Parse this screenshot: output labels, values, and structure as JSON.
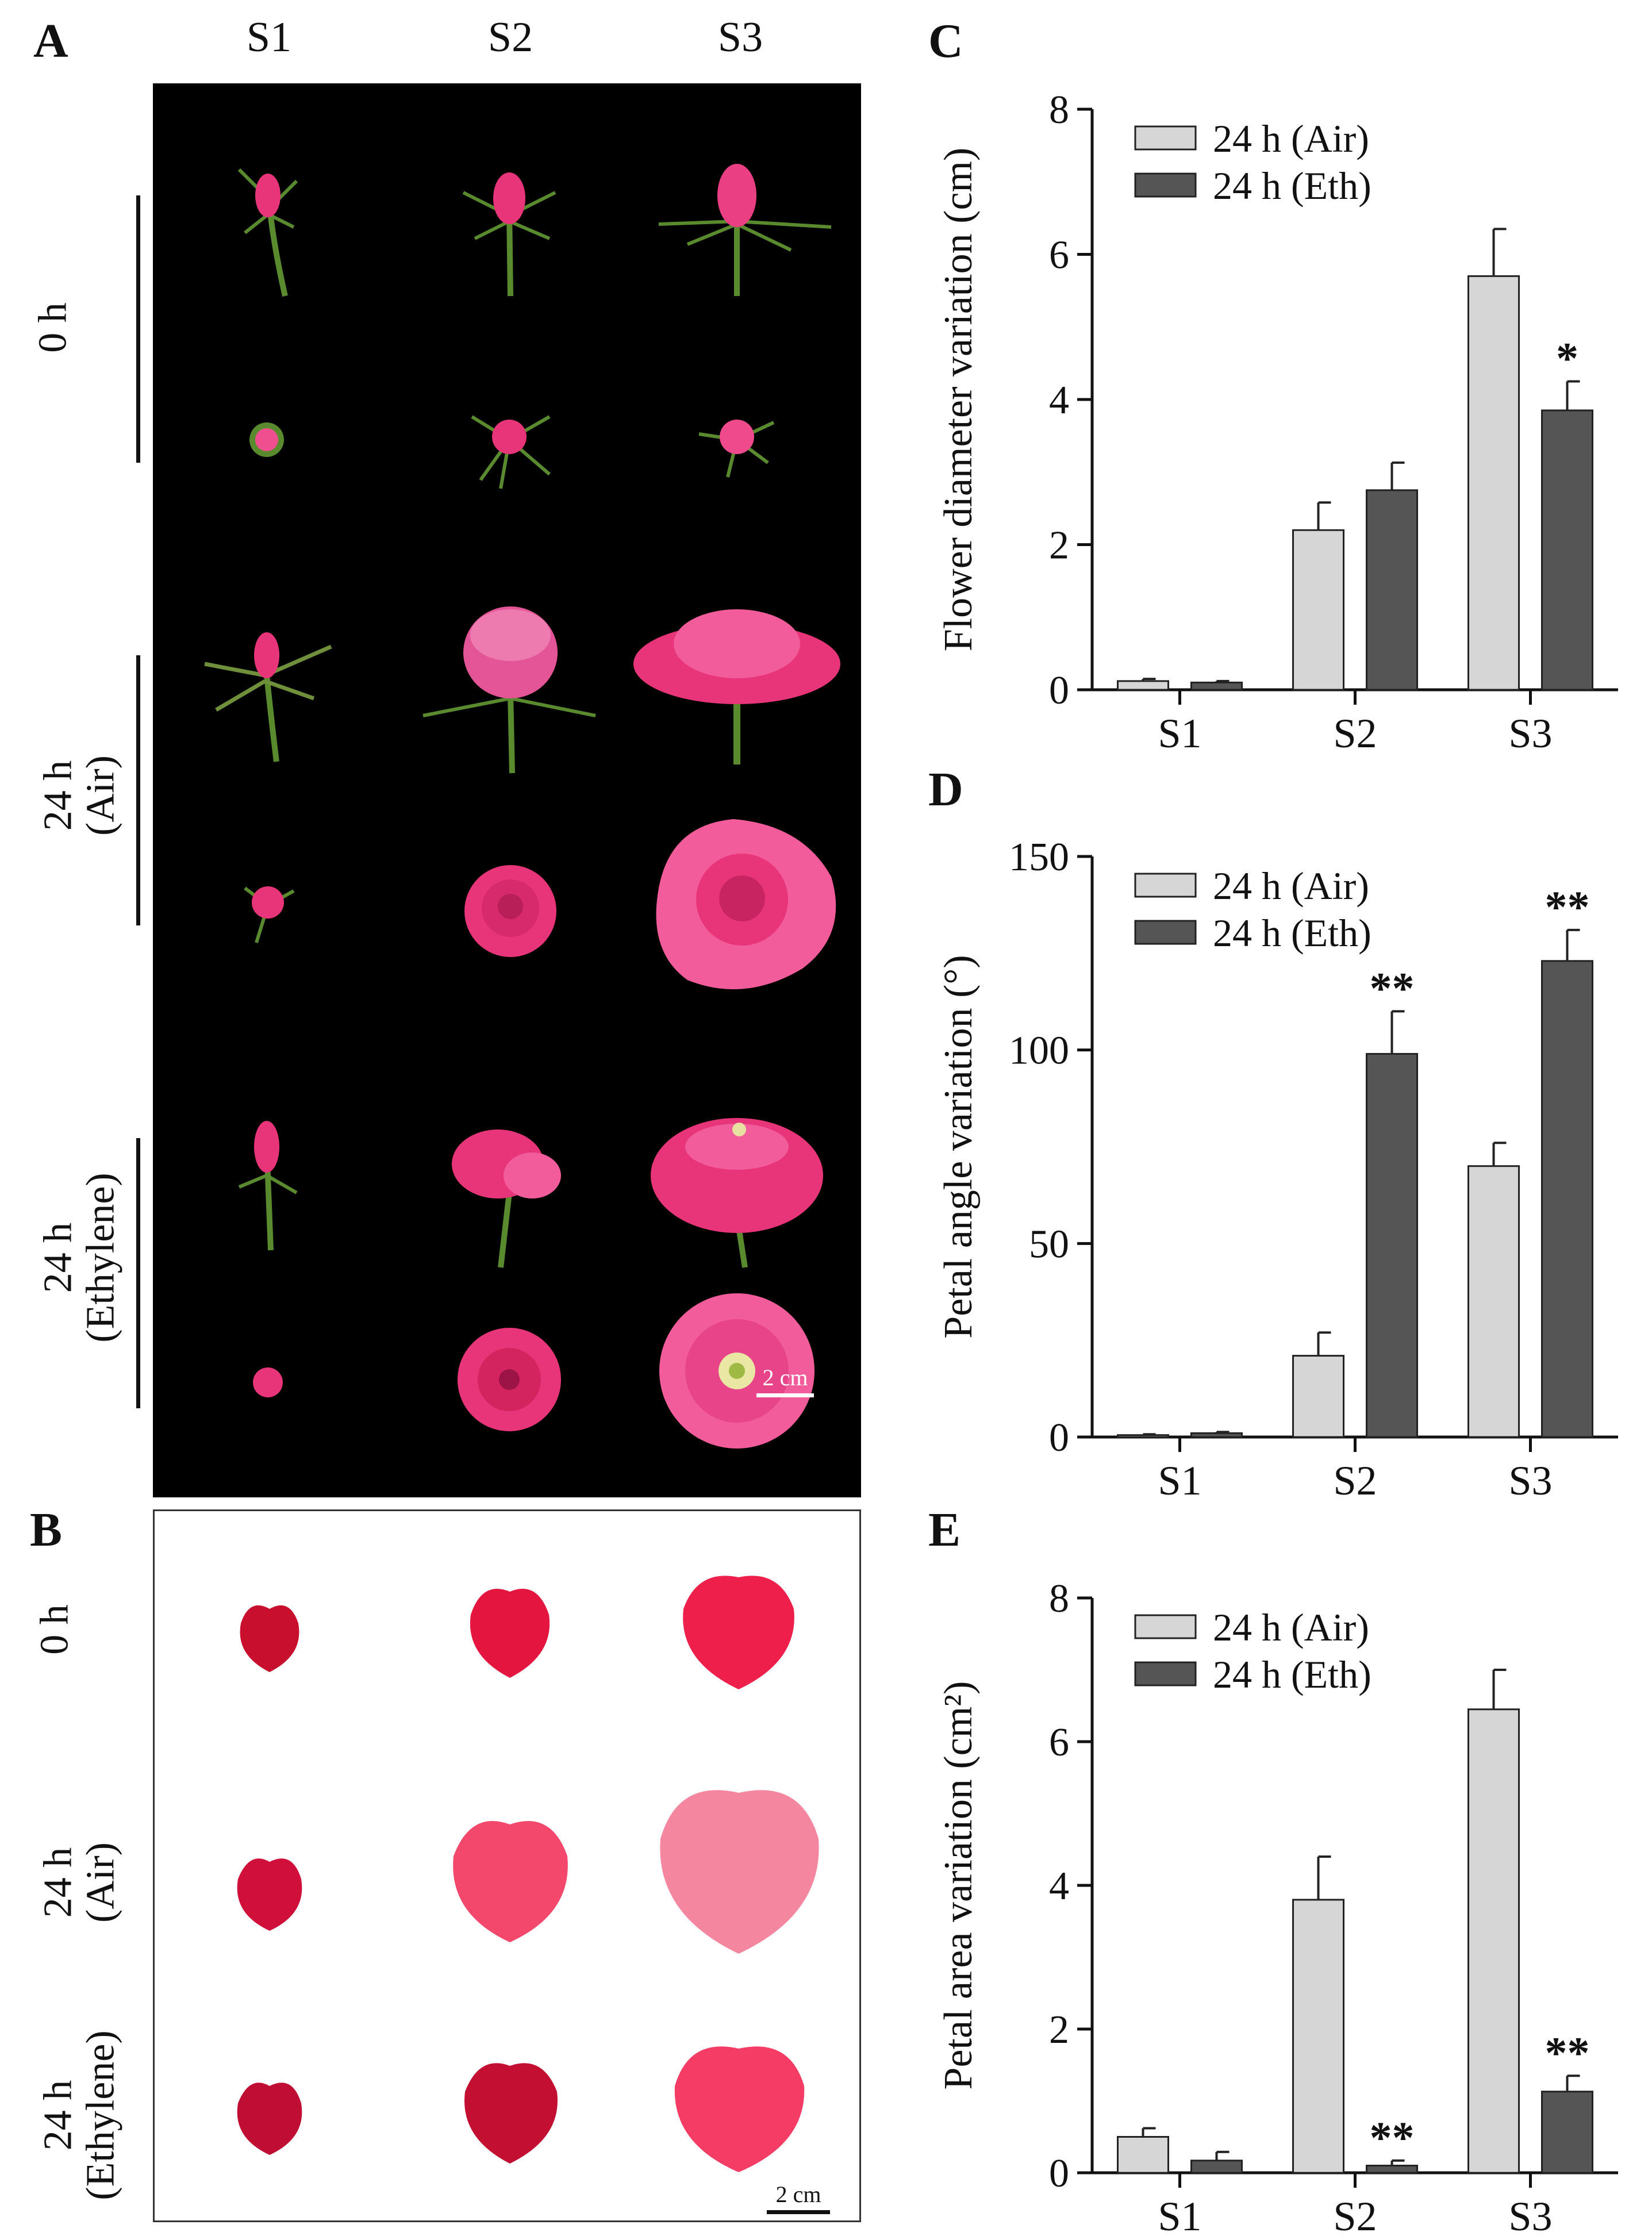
{
  "panels": {
    "a": "A",
    "b": "B",
    "c": "C",
    "d": "D",
    "e": "E"
  },
  "columns": [
    "S1",
    "S2",
    "S3"
  ],
  "panel_a_rows": [
    {
      "line1": "0 h",
      "line2": ""
    },
    {
      "line1": "24 h",
      "line2": "(Air)"
    },
    {
      "line1": "24 h",
      "line2": "(Ethylene)"
    }
  ],
  "panel_b_rows": [
    {
      "line1": "0 h",
      "line2": ""
    },
    {
      "line1": "24 h",
      "line2": "(Air)"
    },
    {
      "line1": "24 h",
      "line2": "(Ethylene)"
    }
  ],
  "scale_bar_a": "2 cm",
  "scale_bar_b": "2 cm",
  "colors": {
    "photo_bg": "#000000",
    "rose_pink": "#e8357a",
    "rose_light": "#f25c9a",
    "petal_red": "#c8102e",
    "petal_pink": "#f5869f",
    "stem_green": "#5a8a2e",
    "air_bar": "#d6d6d6",
    "eth_bar": "#555555"
  },
  "chart_data": [
    {
      "type": "bar",
      "panel": "C",
      "title": "",
      "xlabel": "",
      "ylabel": "Flower diameter variation (cm)",
      "categories": [
        "S1",
        "S2",
        "S3"
      ],
      "ylim": [
        0,
        8
      ],
      "yticks": [
        0,
        2,
        4,
        6,
        8
      ],
      "legend_position": "top-left",
      "series": [
        {
          "name": "24 h (Air)",
          "values": [
            0.12,
            2.2,
            5.7
          ],
          "errors": [
            0.03,
            0.38,
            0.65
          ],
          "color": "#d6d6d6"
        },
        {
          "name": "24 h (Eth)",
          "values": [
            0.1,
            2.75,
            3.85
          ],
          "errors": [
            0.02,
            0.38,
            0.4
          ],
          "color": "#555555"
        }
      ],
      "annotations": [
        {
          "category": "S3",
          "series": "24 h (Eth)",
          "text": "*"
        }
      ]
    },
    {
      "type": "bar",
      "panel": "D",
      "title": "",
      "xlabel": "",
      "ylabel": "Petal angle variation (°)",
      "categories": [
        "S1",
        "S2",
        "S3"
      ],
      "ylim": [
        0,
        150
      ],
      "yticks": [
        0,
        50,
        100,
        150
      ],
      "legend_position": "top-left",
      "series": [
        {
          "name": "24 h (Air)",
          "values": [
            0.5,
            21,
            70
          ],
          "errors": [
            0.2,
            6,
            6
          ],
          "color": "#d6d6d6"
        },
        {
          "name": "24 h (Eth)",
          "values": [
            1,
            99,
            123
          ],
          "errors": [
            0.3,
            11,
            8
          ],
          "color": "#555555"
        }
      ],
      "annotations": [
        {
          "category": "S2",
          "series": "24 h (Eth)",
          "text": "**"
        },
        {
          "category": "S3",
          "series": "24 h (Eth)",
          "text": "**"
        }
      ]
    },
    {
      "type": "bar",
      "panel": "E",
      "title": "",
      "xlabel": "",
      "ylabel": "Petal area variation (cm²)",
      "categories": [
        "S1",
        "S2",
        "S3"
      ],
      "ylim": [
        0,
        8
      ],
      "yticks": [
        0,
        2,
        4,
        6,
        8
      ],
      "legend_position": "top-left",
      "series": [
        {
          "name": "24 h (Air)",
          "values": [
            0.5,
            3.8,
            6.45
          ],
          "errors": [
            0.12,
            0.6,
            0.55
          ],
          "color": "#d6d6d6"
        },
        {
          "name": "24 h (Eth)",
          "values": [
            0.17,
            0.1,
            1.13
          ],
          "errors": [
            0.12,
            0.07,
            0.22
          ],
          "color": "#555555"
        }
      ],
      "annotations": [
        {
          "category": "S2",
          "series": "24 h (Eth)",
          "text": "**"
        },
        {
          "category": "S3",
          "series": "24 h (Eth)",
          "text": "**"
        }
      ]
    }
  ]
}
